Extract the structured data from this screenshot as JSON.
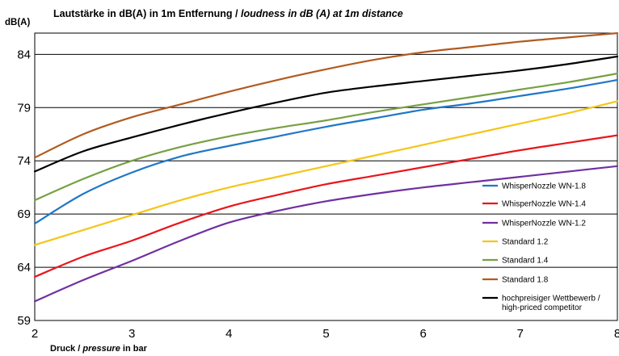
{
  "chart_data": {
    "type": "line",
    "title_de": "Lautstärke in dB(A) in 1m Entfernung /",
    "title_en": "loudness in dB (A) at 1m distance",
    "ylabel": "dB(A)",
    "xlabel_de": "Druck /",
    "xlabel_en": "pressure",
    "xlabel_unit": "in bar",
    "xlim": [
      2,
      8
    ],
    "ylim": [
      59,
      86
    ],
    "xticks": [
      2,
      3,
      4,
      5,
      6,
      7,
      8
    ],
    "yticks": [
      59,
      64,
      69,
      74,
      79,
      84
    ],
    "grid": "horizontal",
    "legend_position": "lower-right",
    "x": [
      2,
      2.5,
      3,
      3.5,
      4,
      4.5,
      5,
      5.5,
      6,
      6.5,
      7,
      7.5,
      8
    ],
    "series": [
      {
        "name": "WhisperNozzle WN-1.8",
        "color": "#1f77c8",
        "values": [
          68.1,
          70.9,
          72.9,
          74.4,
          75.4,
          76.3,
          77.2,
          78.0,
          78.8,
          79.4,
          80.1,
          80.8,
          81.6
        ]
      },
      {
        "name": "WhisperNozzle WN-1.4",
        "color": "#e8161b",
        "values": [
          63.1,
          65.0,
          66.5,
          68.2,
          69.7,
          70.8,
          71.8,
          72.6,
          73.4,
          74.2,
          75.0,
          75.7,
          76.4
        ]
      },
      {
        "name": "WhisperNozzle WN-1.2",
        "color": "#7030a0",
        "values": [
          60.8,
          62.8,
          64.6,
          66.5,
          68.2,
          69.3,
          70.2,
          70.9,
          71.5,
          72.0,
          72.5,
          73.0,
          73.5
        ]
      },
      {
        "name": "Standard 1.2",
        "color": "#f5c518",
        "values": [
          66.1,
          67.5,
          68.9,
          70.3,
          71.5,
          72.5,
          73.5,
          74.5,
          75.5,
          76.5,
          77.5,
          78.5,
          79.6
        ]
      },
      {
        "name": "Standard 1.4",
        "color": "#77a043",
        "values": [
          70.3,
          72.3,
          74.0,
          75.3,
          76.3,
          77.1,
          77.8,
          78.6,
          79.3,
          80.0,
          80.7,
          81.4,
          82.2
        ]
      },
      {
        "name": "Standard 1.8",
        "color": "#b25a1e",
        "values": [
          74.3,
          76.5,
          78.1,
          79.3,
          80.5,
          81.6,
          82.6,
          83.5,
          84.2,
          84.7,
          85.2,
          85.6,
          86.0
        ]
      },
      {
        "name": "hochpreisiger Wettbewerb / high-priced competitor",
        "color": "#000000",
        "name_line1": "hochpreisiger Wettbewerb /",
        "name_line2": "high-priced competitor",
        "values": [
          73.0,
          74.9,
          76.2,
          77.4,
          78.5,
          79.5,
          80.4,
          81.0,
          81.5,
          82.0,
          82.5,
          83.1,
          83.8
        ]
      }
    ]
  }
}
